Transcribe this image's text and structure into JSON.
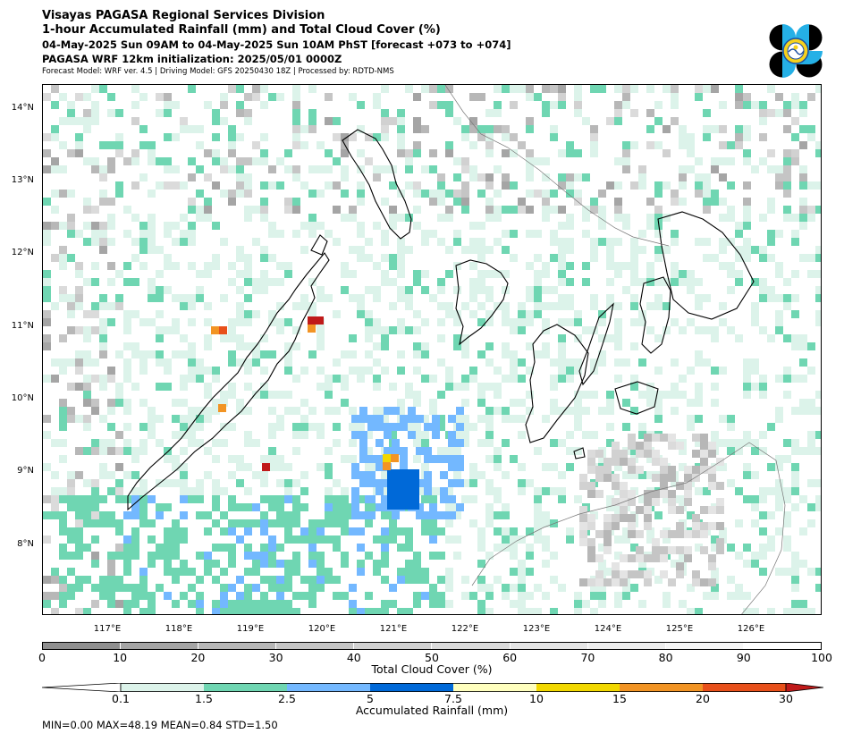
{
  "header": {
    "line1": "Visayas PAGASA Regional Services Division",
    "line2": "1-hour Accumulated Rainfall (mm) and Total Cloud Cover (%)",
    "line3": "04-May-2025 Sun 09AM to 04-May-2025 Sun 10AM PhST [forecast +073 to +074]",
    "line4": "PAGASA WRF 12km initialization: 2025/05/01 0000Z",
    "line5": "Forecast Model: WRF ver. 4.5 | Driving Model: GFS 20250430 18Z | Processed by: RDTD-NMS"
  },
  "map": {
    "lat_labels": [
      "14°N",
      "13°N",
      "12°N",
      "11°N",
      "10°N",
      "9°N",
      "8°N"
    ],
    "lon_labels": [
      "117°E",
      "118°E",
      "119°E",
      "120°E",
      "121°E",
      "122°E",
      "123°E",
      "124°E",
      "125°E",
      "126°E"
    ],
    "extent": {
      "lon_min": 116.0,
      "lon_max": 126.9,
      "lat_min": 7.0,
      "lat_max": 14.3
    }
  },
  "cloud_legend": {
    "title": "Total Cloud Cover (%)",
    "ticks": [
      "0",
      "10",
      "20",
      "30",
      "40",
      "50",
      "60",
      "70",
      "80",
      "90",
      "100"
    ],
    "colors": [
      "#8f8f8f",
      "#a5a5a5",
      "#b7b7b7",
      "#c5c5c5",
      "#d1d1d1",
      "#dbdbdb",
      "#e4e4e4",
      "#ededed",
      "#f6f6f6",
      "#ffffff"
    ]
  },
  "rain_legend": {
    "title": "Accumulated Rainfall (mm)",
    "ticks": [
      "0.1",
      "1.5",
      "2.5",
      "5",
      "7.5",
      "10",
      "15",
      "20",
      "30"
    ],
    "colors": [
      "#dcf3ea",
      "#6fd6b2",
      "#73b8ff",
      "#0069d8",
      "#ffffbe",
      "#f2d800",
      "#f29424",
      "#e8501a",
      "#c01a1a"
    ]
  },
  "stats": {
    "text": "MIN=0.00   MAX=48.19   MEAN=0.84   STD=1.50"
  }
}
